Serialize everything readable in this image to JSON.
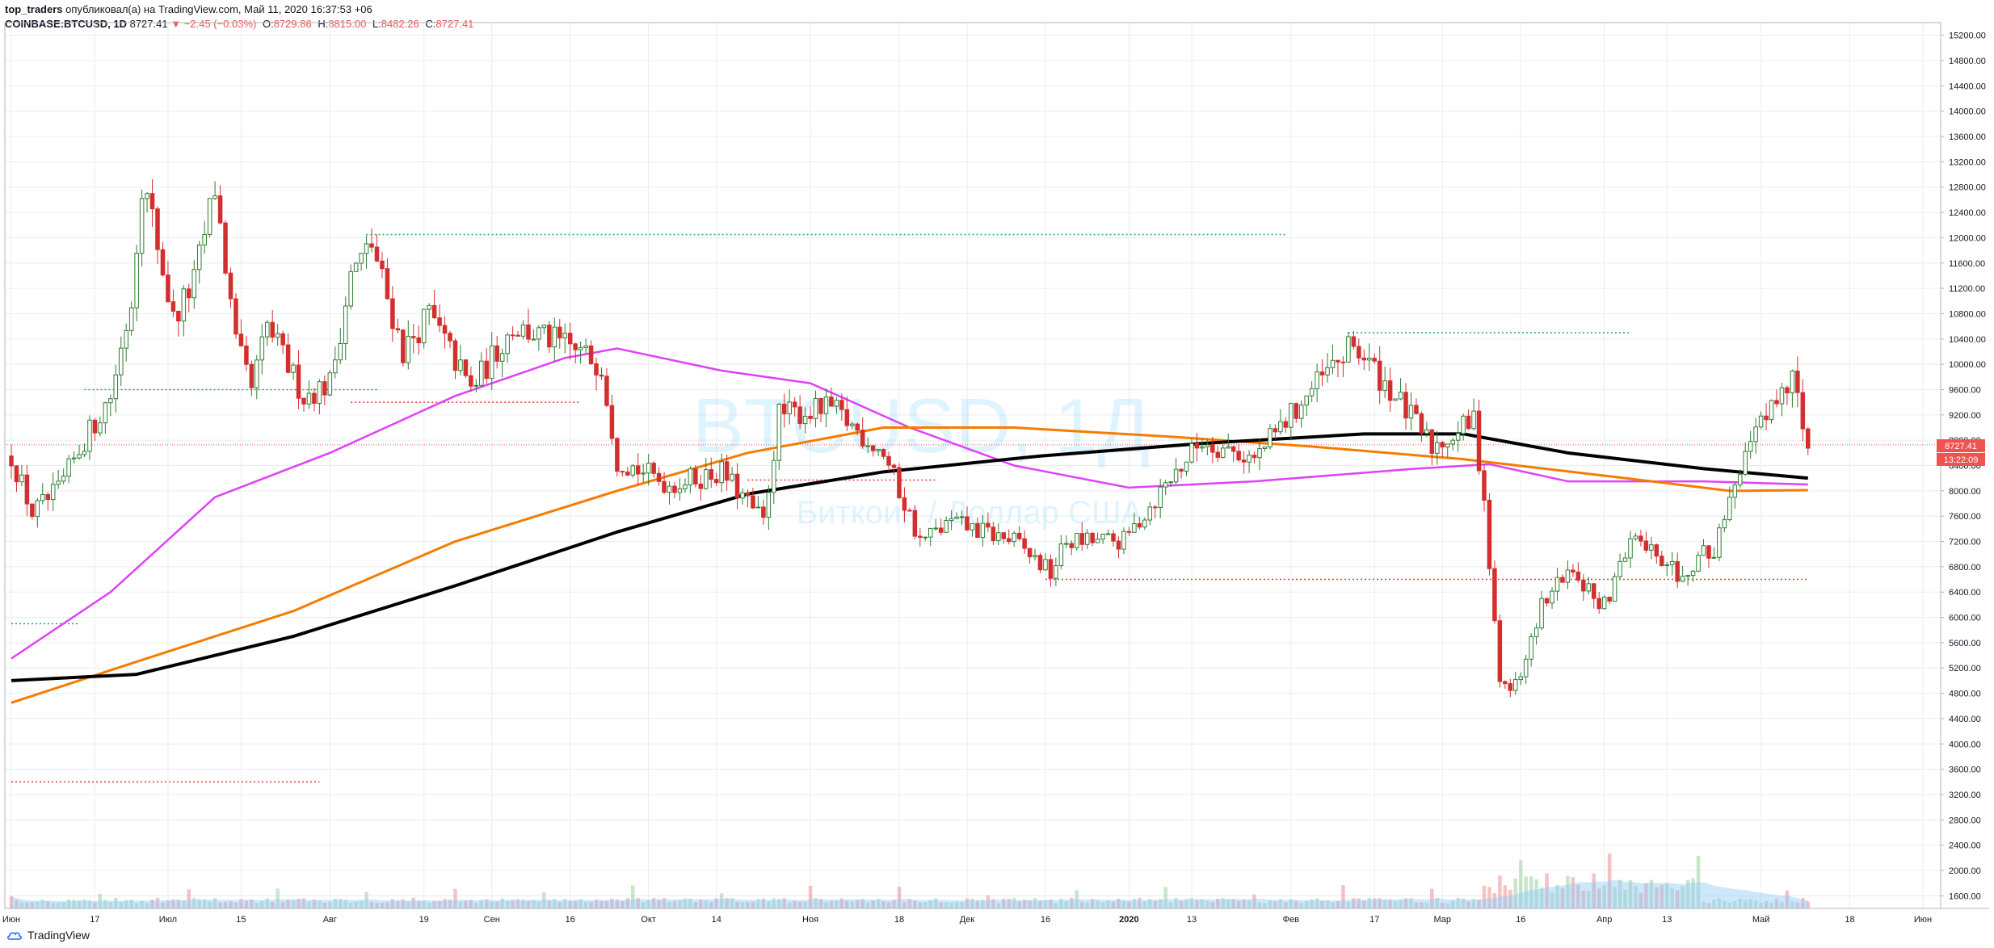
{
  "header": {
    "user": "top_traders",
    "published_text": "опубликовал(а) на TradingView.com, Май 11, 2020 16:37:53 +06",
    "symbol": "COINBASE:BTCUSD, 1D",
    "last": "8727.41",
    "change": "−2.45 (−0.03%)",
    "o_label": "O:",
    "o_value": "8729.86",
    "h_label": "H:",
    "h_value": "8815.00",
    "l_label": "L:",
    "l_value": "8482.26",
    "c_label": "C:",
    "c_value": "8727.41"
  },
  "watermark": {
    "symbol": "BTCUSD, 1Д",
    "description": "Биткоин / Доллар США"
  },
  "footer": {
    "logo_text": "TradingView"
  },
  "colors": {
    "up": "#26a69a",
    "up_candle": "#2e7d32",
    "down": "#d32f2f",
    "ma200": "#000000",
    "ma_orange": "#f57c00",
    "ma_magenta": "#e040fb",
    "price_line": "#ef5350",
    "volume_fill": "#90caf9",
    "grid": "#e9ecf2",
    "td_green": "#21a366",
    "td_red": "#e53935"
  },
  "price_labels": {
    "last": "8727.41",
    "countdown": "13:22:09"
  },
  "chart_data": {
    "type": "candlestick",
    "title": "",
    "y_axis": {
      "min": 1400,
      "max": 15400,
      "ticks": [
        1600,
        2000,
        2400,
        2800,
        3200,
        3600,
        4000,
        4400,
        4800,
        5200,
        5600,
        6000,
        6400,
        6800,
        7200,
        7600,
        8000,
        8400,
        8800,
        9200,
        9600,
        10000,
        10400,
        10800,
        11200,
        11600,
        12000,
        12400,
        12800,
        13200,
        13600,
        14000,
        14400,
        14800,
        15200
      ],
      "tick_labels": [
        "1600.00",
        "2000.00",
        "2400.00",
        "2800.00",
        "3200.00",
        "3600.00",
        "4000.00",
        "4400.00",
        "4800.00",
        "5200.00",
        "5600.00",
        "6000.00",
        "6400.00",
        "6800.00",
        "7200.00",
        "7600.00",
        "8000.00",
        "8400.00",
        "8800.00",
        "9200.00",
        "9600.00",
        "10000.00",
        "10400.00",
        "10800.00",
        "11200.00",
        "11600.00",
        "12000.00",
        "12400.00",
        "12800.00",
        "13200.00",
        "13600.00",
        "14000.00",
        "14400.00",
        "14800.00",
        "15200.00"
      ]
    },
    "x_axis": {
      "tick_labels": [
        {
          "label": "Июн",
          "date": "2019-06-01"
        },
        {
          "label": "17",
          "date": "2019-06-17"
        },
        {
          "label": "Июл",
          "date": "2019-07-01"
        },
        {
          "label": "15",
          "date": "2019-07-15"
        },
        {
          "label": "Авг",
          "date": "2019-08-01"
        },
        {
          "label": "19",
          "date": "2019-08-19"
        },
        {
          "label": "Сен",
          "date": "2019-09-01"
        },
        {
          "label": "16",
          "date": "2019-09-16"
        },
        {
          "label": "Окт",
          "date": "2019-10-01"
        },
        {
          "label": "14",
          "date": "2019-10-14"
        },
        {
          "label": "Ноя",
          "date": "2019-11-01"
        },
        {
          "label": "18",
          "date": "2019-11-18"
        },
        {
          "label": "Дек",
          "date": "2019-12-01"
        },
        {
          "label": "16",
          "date": "2019-12-16"
        },
        {
          "label": "2020",
          "date": "2020-01-01",
          "bold": true
        },
        {
          "label": "13",
          "date": "2020-01-13"
        },
        {
          "label": "Фев",
          "date": "2020-02-01"
        },
        {
          "label": "17",
          "date": "2020-02-17"
        },
        {
          "label": "Мар",
          "date": "2020-03-01"
        },
        {
          "label": "16",
          "date": "2020-03-16"
        },
        {
          "label": "Апр",
          "date": "2020-04-01"
        },
        {
          "label": "13",
          "date": "2020-04-13"
        },
        {
          "label": "Май",
          "date": "2020-05-01"
        },
        {
          "label": "18",
          "date": "2020-05-18"
        },
        {
          "label": "Июн",
          "date": "2020-06-01"
        }
      ]
    },
    "price_path": [
      {
        "date": "2019-06-01",
        "close": 8550
      },
      {
        "date": "2019-06-05",
        "close": 7650
      },
      {
        "date": "2019-06-10",
        "close": 8000
      },
      {
        "date": "2019-06-15",
        "close": 8800
      },
      {
        "date": "2019-06-20",
        "close": 9500
      },
      {
        "date": "2019-06-24",
        "close": 11000
      },
      {
        "date": "2019-06-26",
        "close": 12900
      },
      {
        "date": "2019-06-28",
        "close": 12300
      },
      {
        "date": "2019-07-02",
        "close": 10700
      },
      {
        "date": "2019-07-06",
        "close": 11300
      },
      {
        "date": "2019-07-10",
        "close": 12800
      },
      {
        "date": "2019-07-14",
        "close": 10300
      },
      {
        "date": "2019-07-17",
        "close": 9600
      },
      {
        "date": "2019-07-20",
        "close": 10600
      },
      {
        "date": "2019-07-27",
        "close": 9500
      },
      {
        "date": "2019-08-01",
        "close": 9700
      },
      {
        "date": "2019-08-05",
        "close": 11400
      },
      {
        "date": "2019-08-09",
        "close": 11900
      },
      {
        "date": "2019-08-15",
        "close": 10200
      },
      {
        "date": "2019-08-20",
        "close": 10800
      },
      {
        "date": "2019-08-28",
        "close": 9600
      },
      {
        "date": "2019-09-05",
        "close": 10600
      },
      {
        "date": "2019-09-15",
        "close": 10300
      },
      {
        "date": "2019-09-22",
        "close": 10000
      },
      {
        "date": "2019-09-25",
        "close": 8500
      },
      {
        "date": "2019-10-05",
        "close": 8100
      },
      {
        "date": "2019-10-15",
        "close": 8300
      },
      {
        "date": "2019-10-23",
        "close": 7500
      },
      {
        "date": "2019-10-26",
        "close": 9200
      },
      {
        "date": "2019-11-05",
        "close": 9300
      },
      {
        "date": "2019-11-15",
        "close": 8600
      },
      {
        "date": "2019-11-22",
        "close": 7200
      },
      {
        "date": "2019-11-28",
        "close": 7500
      },
      {
        "date": "2019-12-10",
        "close": 7200
      },
      {
        "date": "2019-12-17",
        "close": 6700
      },
      {
        "date": "2019-12-20",
        "close": 7200
      },
      {
        "date": "2019-12-31",
        "close": 7200
      },
      {
        "date": "2020-01-08",
        "close": 8100
      },
      {
        "date": "2020-01-15",
        "close": 8800
      },
      {
        "date": "2020-01-25",
        "close": 8500
      },
      {
        "date": "2020-02-05",
        "close": 9600
      },
      {
        "date": "2020-02-13",
        "close": 10300
      },
      {
        "date": "2020-02-20",
        "close": 9600
      },
      {
        "date": "2020-02-28",
        "close": 8700
      },
      {
        "date": "2020-03-07",
        "close": 9100
      },
      {
        "date": "2020-03-09",
        "close": 7900
      },
      {
        "date": "2020-03-12",
        "close": 4900
      },
      {
        "date": "2020-03-16",
        "close": 5000
      },
      {
        "date": "2020-03-20",
        "close": 6200
      },
      {
        "date": "2020-03-25",
        "close": 6700
      },
      {
        "date": "2020-04-01",
        "close": 6200
      },
      {
        "date": "2020-04-07",
        "close": 7300
      },
      {
        "date": "2020-04-15",
        "close": 6700
      },
      {
        "date": "2020-04-22",
        "close": 7100
      },
      {
        "date": "2020-04-29",
        "close": 8800
      },
      {
        "date": "2020-05-07",
        "close": 9900
      },
      {
        "date": "2020-05-10",
        "close": 8727.41
      }
    ],
    "series": [
      {
        "name": "",
        "color": "#e040fb",
        "points": [
          [
            "2019-06-01",
            5350
          ],
          [
            "2019-06-20",
            6400
          ],
          [
            "2019-07-10",
            7900
          ],
          [
            "2019-08-01",
            8600
          ],
          [
            "2019-08-25",
            9500
          ],
          [
            "2019-09-15",
            10100
          ],
          [
            "2019-09-25",
            10250
          ],
          [
            "2019-10-15",
            9900
          ],
          [
            "2019-11-01",
            9700
          ],
          [
            "2019-11-20",
            9000
          ],
          [
            "2019-12-10",
            8400
          ],
          [
            "2020-01-01",
            8050
          ],
          [
            "2020-01-25",
            8150
          ],
          [
            "2020-02-25",
            8350
          ],
          [
            "2020-03-10",
            8420
          ],
          [
            "2020-03-25",
            8150
          ],
          [
            "2020-04-20",
            8150
          ],
          [
            "2020-05-10",
            8100
          ]
        ]
      },
      {
        "name": "",
        "color": "#f57c00",
        "points": [
          [
            "2019-06-01",
            4650
          ],
          [
            "2019-06-25",
            5300
          ],
          [
            "2019-07-25",
            6100
          ],
          [
            "2019-08-25",
            7200
          ],
          [
            "2019-09-25",
            8000
          ],
          [
            "2019-10-20",
            8600
          ],
          [
            "2019-11-15",
            9000
          ],
          [
            "2019-12-10",
            9000
          ],
          [
            "2020-01-10",
            8850
          ],
          [
            "2020-02-05",
            8700
          ],
          [
            "2020-03-05",
            8500
          ],
          [
            "2020-04-05",
            8200
          ],
          [
            "2020-04-25",
            8000
          ],
          [
            "2020-05-10",
            8010
          ]
        ]
      },
      {
        "name": "",
        "color": "#000000",
        "points": [
          [
            "2019-06-01",
            5000
          ],
          [
            "2019-06-25",
            5100
          ],
          [
            "2019-07-25",
            5700
          ],
          [
            "2019-08-25",
            6500
          ],
          [
            "2019-09-25",
            7350
          ],
          [
            "2019-10-20",
            7950
          ],
          [
            "2019-11-15",
            8300
          ],
          [
            "2019-12-15",
            8550
          ],
          [
            "2020-01-15",
            8750
          ],
          [
            "2020-02-15",
            8900
          ],
          [
            "2020-03-05",
            8900
          ],
          [
            "2020-03-25",
            8600
          ],
          [
            "2020-04-20",
            8350
          ],
          [
            "2020-05-10",
            8200
          ]
        ]
      }
    ],
    "levels": [
      {
        "price": 12050,
        "from": "2019-08-08",
        "to": "2020-01-31",
        "color": "#21a366"
      },
      {
        "price": 10500,
        "from": "2020-02-12",
        "to": "2020-04-06",
        "color": "#21a366"
      },
      {
        "price": 9600,
        "from": "2019-06-15",
        "to": "2019-08-10",
        "color": "#21a366"
      },
      {
        "price": 9400,
        "from": "2019-08-05",
        "to": "2019-09-18",
        "color": "#e53935"
      },
      {
        "price": 8170,
        "from": "2019-10-20",
        "to": "2019-11-25",
        "color": "#e53935"
      },
      {
        "price": 6600,
        "from": "2019-12-16",
        "to": "2020-05-10",
        "color": "#e53935"
      },
      {
        "price": 5900,
        "from": "2019-06-01",
        "to": "2019-06-14",
        "color": "#21a366"
      },
      {
        "price": 3400,
        "from": "2019-06-01",
        "to": "2019-07-30",
        "color": "#e53935"
      }
    ],
    "volume": {
      "scale_max": 3000
    }
  }
}
